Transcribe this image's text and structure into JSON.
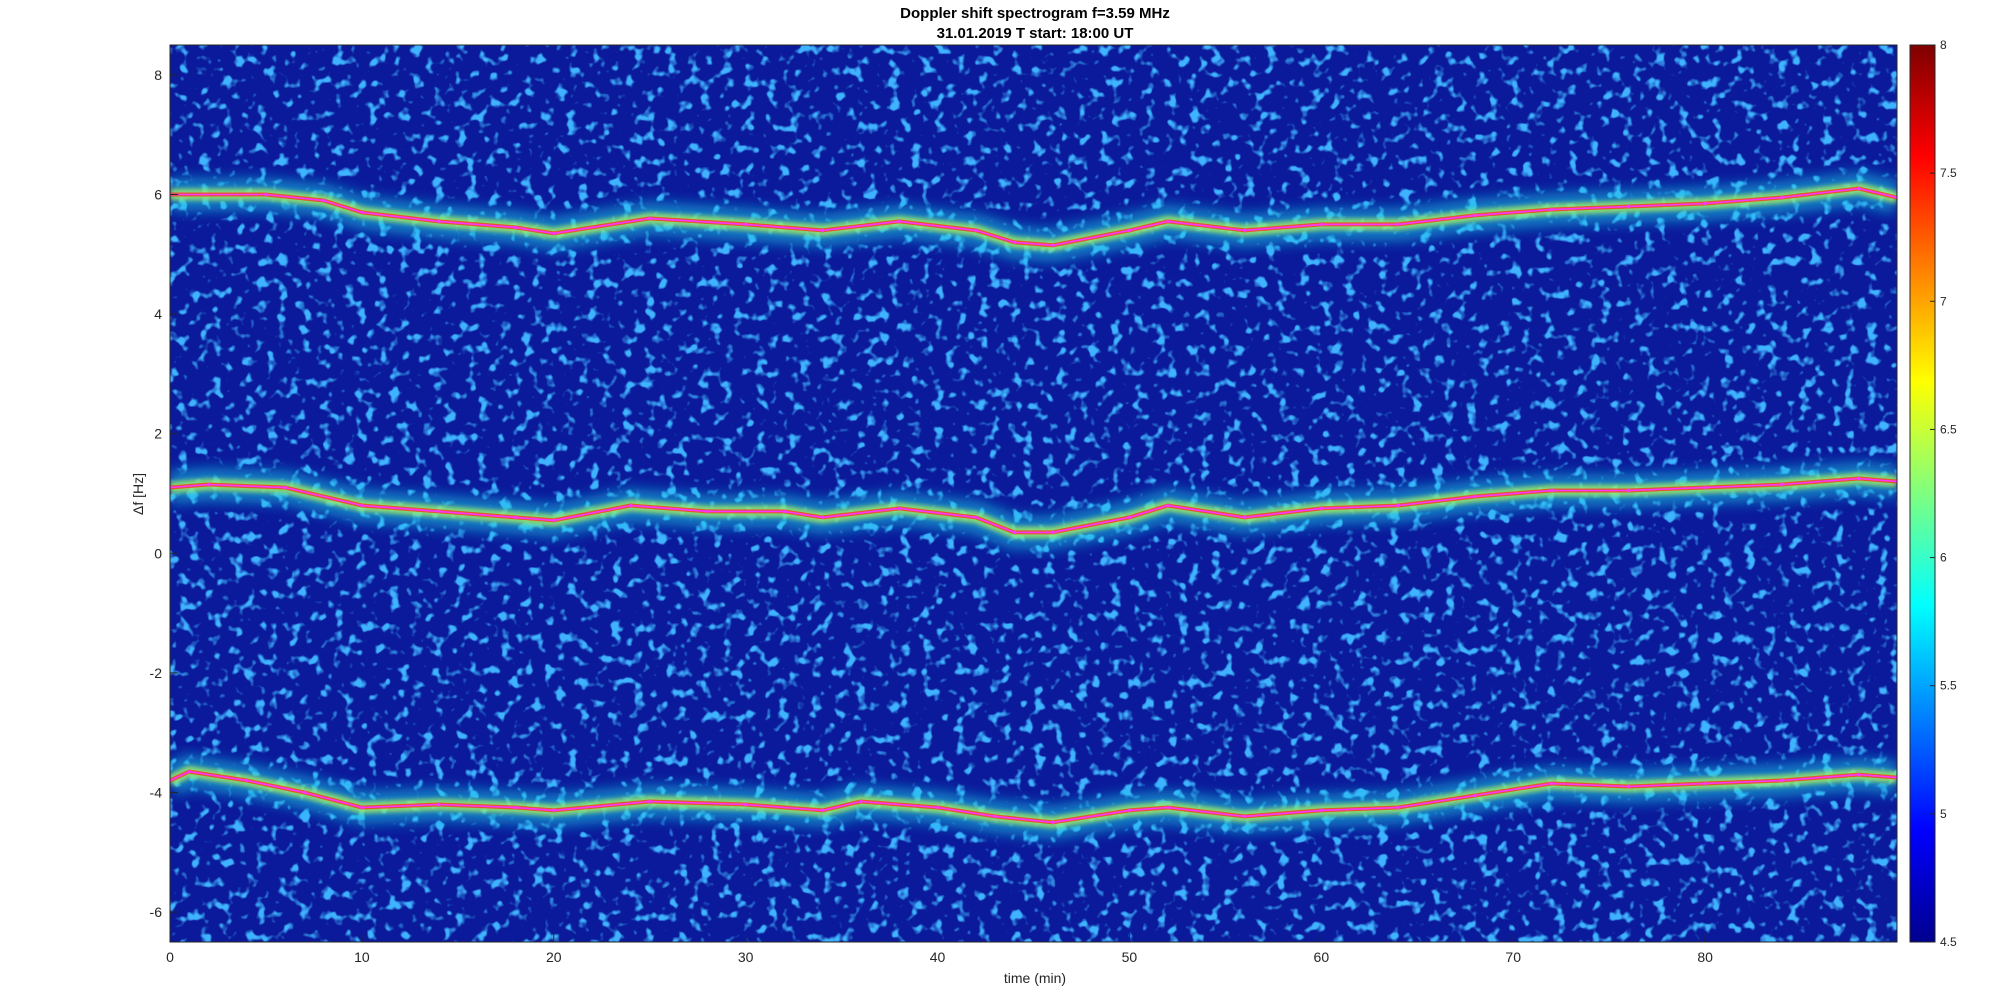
{
  "chart_data": {
    "type": "heatmap",
    "title": "Doppler shift spectrogram f=3.59 MHz",
    "subtitle": "31.01.2019   T start: 18:00 UT",
    "xlabel": "time (min)",
    "ylabel": "Δf [Hz]",
    "xlim": [
      0,
      90
    ],
    "ylim": [
      -6.5,
      8.5
    ],
    "xticks": [
      "0",
      "10",
      "20",
      "30",
      "40",
      "50",
      "60",
      "70",
      "80"
    ],
    "yticks": [
      "-6",
      "-4",
      "-2",
      "0",
      "2",
      "4",
      "6",
      "8"
    ],
    "colorbar": {
      "colormap": "jet",
      "limits": [
        4.5,
        8
      ],
      "ticks": [
        "4.5",
        "5",
        "5.5",
        "6",
        "6.5",
        "7",
        "7.5",
        "8"
      ]
    },
    "background_color": "#0a1a9a",
    "trace_color": "#ff33ff",
    "series": [
      {
        "x": [
          0,
          5,
          8,
          10,
          14,
          18,
          20,
          25,
          30,
          34,
          38,
          42,
          44,
          46,
          50,
          52,
          56,
          60,
          64,
          68,
          72,
          76,
          80,
          84,
          88,
          90
        ],
        "y": [
          6.0,
          6.0,
          5.9,
          5.7,
          5.55,
          5.45,
          5.35,
          5.6,
          5.5,
          5.4,
          5.55,
          5.4,
          5.2,
          5.15,
          5.4,
          5.55,
          5.4,
          5.5,
          5.5,
          5.65,
          5.75,
          5.8,
          5.85,
          5.95,
          6.1,
          5.95
        ]
      },
      {
        "x": [
          0,
          2,
          6,
          10,
          14,
          18,
          20,
          24,
          28,
          32,
          34,
          38,
          42,
          44,
          46,
          50,
          52,
          56,
          60,
          64,
          68,
          72,
          76,
          80,
          84,
          88,
          90
        ],
        "y": [
          1.1,
          1.15,
          1.1,
          0.8,
          0.7,
          0.6,
          0.55,
          0.8,
          0.7,
          0.7,
          0.6,
          0.75,
          0.6,
          0.35,
          0.35,
          0.6,
          0.8,
          0.6,
          0.75,
          0.8,
          0.95,
          1.05,
          1.05,
          1.1,
          1.15,
          1.25,
          1.2
        ]
      },
      {
        "x": [
          0,
          1,
          4,
          7,
          10,
          14,
          18,
          20,
          25,
          30,
          34,
          36,
          40,
          43,
          46,
          50,
          52,
          56,
          60,
          64,
          68,
          72,
          76,
          80,
          84,
          88,
          90
        ],
        "y": [
          -3.8,
          -3.65,
          -3.8,
          -4.0,
          -4.25,
          -4.2,
          -4.25,
          -4.3,
          -4.15,
          -4.2,
          -4.3,
          -4.15,
          -4.25,
          -4.4,
          -4.5,
          -4.3,
          -4.25,
          -4.4,
          -4.3,
          -4.25,
          -4.05,
          -3.85,
          -3.9,
          -3.85,
          -3.8,
          -3.7,
          -3.75
        ]
      }
    ]
  }
}
